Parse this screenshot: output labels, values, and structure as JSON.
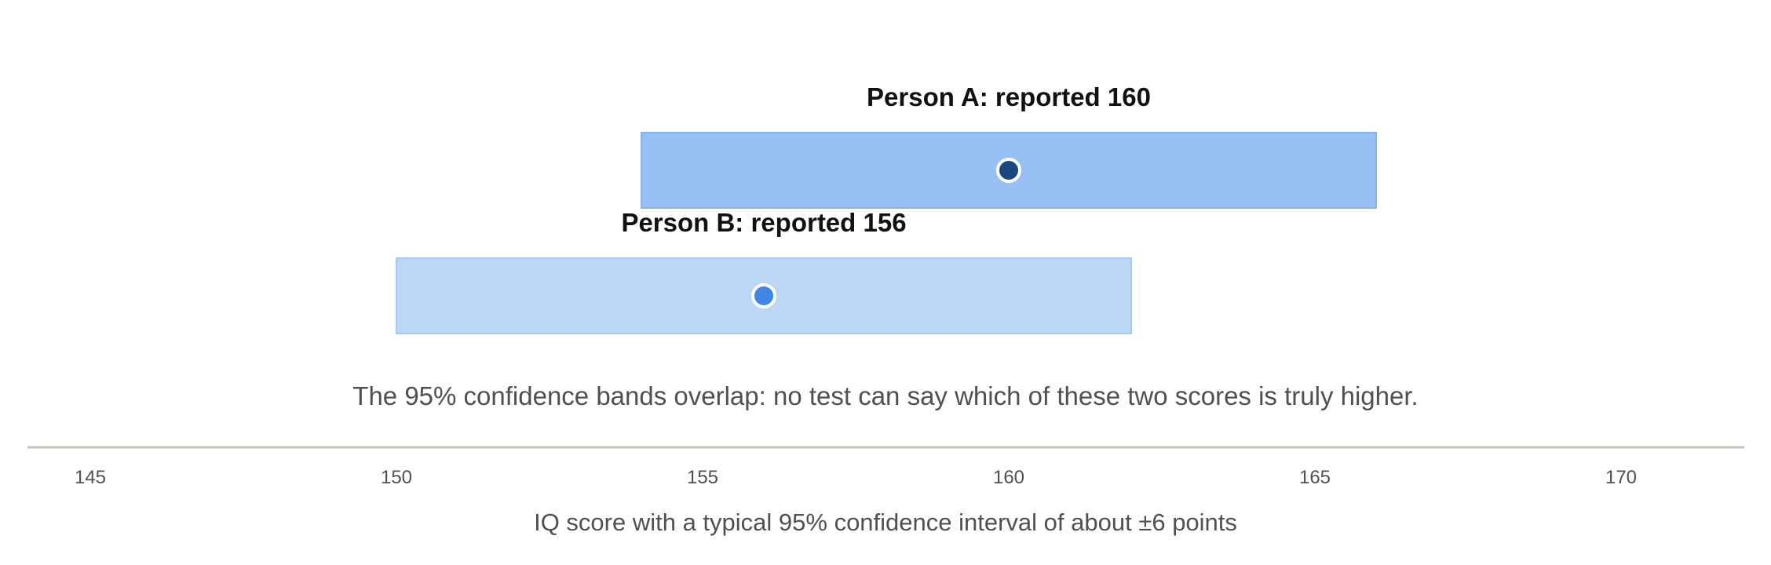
{
  "chart_data": {
    "type": "interval",
    "xlabel": "IQ score with a typical 95% confidence interval of about ±6 points",
    "xlim": [
      144,
      172
    ],
    "xticks": [
      145,
      150,
      155,
      160,
      165,
      170
    ],
    "grid": false,
    "series": [
      {
        "name": "Person A: reported 160",
        "value": 160,
        "low": 154,
        "high": 166,
        "band_color": "#99c0f2",
        "band_stroke": "#86b3ee",
        "point_color": "#1a4781"
      },
      {
        "name": "Person B: reported 156",
        "value": 156,
        "low": 150,
        "high": 162,
        "band_color": "#bcd7f6",
        "band_stroke": "#a5c8f3",
        "point_color": "#3e87e6"
      }
    ],
    "annotations": [
      "The 95% confidence bands overlap: no test can say which of these two scores is truly higher."
    ]
  },
  "colors": {
    "axis_line": "#c3c3b8",
    "text_dark": "#111111",
    "text_muted": "#505050",
    "point_outline": "#ffffff"
  }
}
